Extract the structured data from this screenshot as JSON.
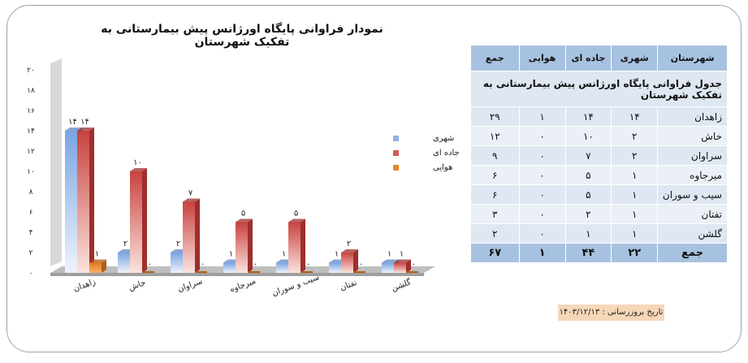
{
  "chart_data": {
    "type": "bar",
    "title": "نمودار فراوانی پایگاه اورژانس پیش بیمارستانی  به تفکیک شهرستان",
    "categories": [
      "زاهدان",
      "خاش",
      "سراوان",
      "میرجاوه",
      "سیب و سوران",
      "تفتان",
      "گلشن"
    ],
    "series": [
      {
        "name": "شهری",
        "values": [
          14,
          2,
          2,
          1,
          1,
          1,
          1
        ],
        "labels": [
          "۱۴",
          "۲",
          "۲",
          "۱",
          "۱",
          "۱",
          "۱"
        ]
      },
      {
        "name": "جاده ای",
        "values": [
          14,
          10,
          7,
          5,
          5,
          2,
          1
        ],
        "labels": [
          "۱۴",
          "۱۰",
          "۷",
          "۵",
          "۵",
          "۲",
          "۱"
        ]
      },
      {
        "name": "هوایی",
        "values": [
          1,
          0,
          0,
          0,
          0,
          0,
          0
        ],
        "labels": [
          "۱",
          "۰",
          "۰",
          "۰",
          "۰",
          "۰",
          "۰"
        ]
      }
    ],
    "ylim": [
      0,
      20
    ],
    "yticks": [
      0,
      2,
      4,
      6,
      8,
      10,
      12,
      14,
      16,
      18,
      20
    ],
    "ytick_labels": [
      "۰",
      "۲",
      "۴",
      "۶",
      "۸",
      "۱۰",
      "۱۲",
      "۱۴",
      "۱۶",
      "۱۸",
      "۲۰"
    ],
    "xlabel": "",
    "ylabel": "",
    "grid": false,
    "legend": "right",
    "colors": [
      "#8fb4e8",
      "#d65a55",
      "#e8852a"
    ]
  },
  "table": {
    "title": "جدول فراوانی پایگاه اورژانس پیش بیمارستانی به تفکیک شهرستان",
    "headers": [
      "شهرستان",
      "شهری",
      "جاده ای",
      "هوایی",
      "جمع"
    ],
    "rows": [
      [
        "زاهدان",
        "۱۴",
        "۱۴",
        "۱",
        "۲۹"
      ],
      [
        "خاش",
        "۲",
        "۱۰",
        "۰",
        "۱۲"
      ],
      [
        "سراوان",
        "۲",
        "۷",
        "۰",
        "۹"
      ],
      [
        "میرجاوه",
        "۱",
        "۵",
        "۰",
        "۶"
      ],
      [
        "سیب و سوران",
        "۱",
        "۵",
        "۰",
        "۶"
      ],
      [
        "تفتان",
        "۱",
        "۲",
        "۰",
        "۳"
      ],
      [
        "گلشن",
        "۱",
        "۱",
        "۰",
        "۲"
      ]
    ],
    "total": [
      "جمع",
      "۲۲",
      "۴۴",
      "۱",
      "۶۷"
    ]
  },
  "update_date": "تاریخ بروزرسانی : ۱۴۰۳/۱۲/۱۳"
}
